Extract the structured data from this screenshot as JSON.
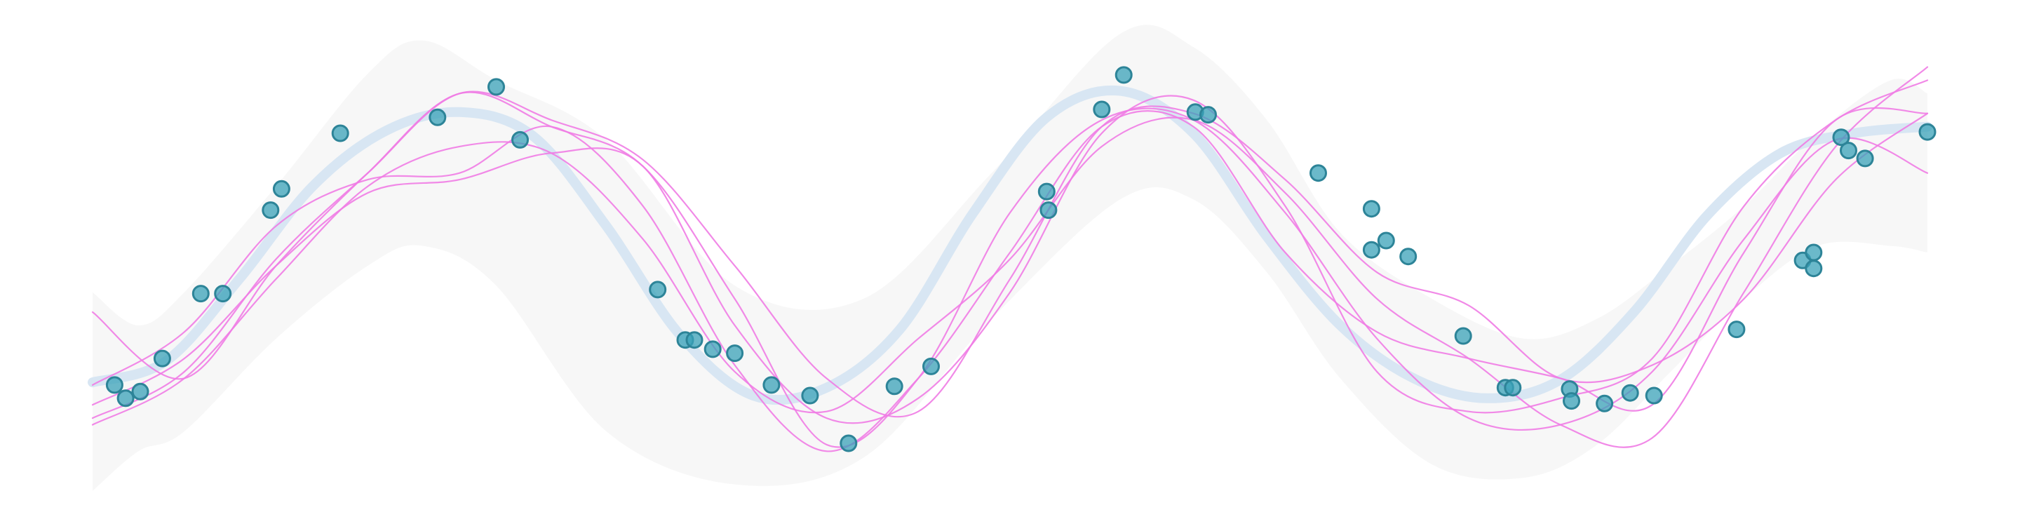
{
  "chart_data": {
    "type": "line",
    "title": "",
    "xlabel": "",
    "ylabel": "",
    "xlim": [
      0,
      10
    ],
    "ylim": [
      -1.8,
      1.8
    ],
    "grid": false,
    "legend": "none",
    "colors": {
      "band": "#f7f7f7",
      "mean": "#d8e6f3",
      "samples": "#f07ce4",
      "points_fill": "#3aa2b8",
      "points_stroke": "#2d8498"
    },
    "uncertainty_band": {
      "x": [
        0,
        0.25,
        0.5,
        1,
        1.5,
        1.8,
        2.2,
        2.8,
        3.5,
        4.2,
        4.9,
        5.6,
        6.0,
        6.4,
        6.8,
        7.3,
        7.8,
        8.2,
        8.6,
        9.0,
        9.4,
        9.8,
        10
      ],
      "upper": [
        -0.3,
        -0.55,
        -0.3,
        0.5,
        1.35,
        1.6,
        1.3,
        0.85,
        -0.25,
        -0.35,
        0.6,
        1.65,
        1.55,
        1.0,
        0.15,
        -0.35,
        -0.65,
        -0.5,
        -0.1,
        0.35,
        0.9,
        1.3,
        1.2
      ],
      "lower": [
        -1.8,
        -1.5,
        -1.35,
        -0.65,
        -0.1,
        0.05,
        -0.25,
        -1.35,
        -1.75,
        -1.55,
        -0.5,
        0.4,
        0.4,
        -0.15,
        -0.95,
        -1.6,
        -1.7,
        -1.45,
        -0.9,
        -0.35,
        0.05,
        0.05,
        0.0
      ]
    },
    "mean": {
      "x": [
        0,
        0.4,
        0.8,
        1.2,
        1.6,
        2.0,
        2.4,
        2.8,
        3.2,
        3.6,
        4.0,
        4.4,
        4.8,
        5.2,
        5.6,
        6.0,
        6.4,
        6.8,
        7.2,
        7.6,
        8.0,
        8.4,
        8.8,
        9.2,
        9.6,
        10
      ],
      "y": [
        -0.98,
        -0.82,
        -0.2,
        0.5,
        0.92,
        1.06,
        0.88,
        0.2,
        -0.62,
        -1.08,
        -1.02,
        -0.58,
        0.3,
        1.02,
        1.22,
        0.9,
        0.12,
        -0.55,
        -0.95,
        -1.1,
        -0.96,
        -0.45,
        0.28,
        0.75,
        0.9,
        0.95
      ]
    },
    "samples": [
      {
        "x": [
          0,
          0.5,
          1,
          1.5,
          2,
          2.5,
          3,
          3.5,
          4,
          4.5,
          5,
          5.5,
          6,
          6.5,
          7,
          7.5,
          8,
          8.5,
          9,
          9.5,
          10
        ],
        "y": [
          -1.15,
          -0.8,
          -0.1,
          0.45,
          0.55,
          0.75,
          0.65,
          -0.55,
          -1.25,
          -1.1,
          -0.3,
          0.9,
          1.15,
          0.35,
          -0.9,
          -1.2,
          -1.1,
          -0.8,
          0.35,
          1.0,
          1.3
        ]
      },
      {
        "x": [
          0,
          0.5,
          1,
          1.5,
          2,
          2.5,
          3,
          3.5,
          4,
          4.5,
          5,
          5.5,
          6,
          6.5,
          7,
          7.5,
          8,
          8.5,
          9,
          9.5,
          10
        ],
        "y": [
          -1.0,
          -0.6,
          0.2,
          0.55,
          0.6,
          0.95,
          0.35,
          -0.85,
          -1.5,
          -0.95,
          0.0,
          0.95,
          0.95,
          0.0,
          -0.6,
          -0.8,
          -0.95,
          -1.15,
          0.0,
          1.0,
          1.05
        ]
      },
      {
        "x": [
          0,
          0.5,
          1,
          1.5,
          2,
          2.5,
          3,
          3.5,
          4,
          4.5,
          5,
          5.5,
          6,
          6.5,
          7,
          7.5,
          8,
          8.5,
          9,
          9.5,
          10
        ],
        "y": [
          -0.45,
          -0.95,
          -0.1,
          0.6,
          1.2,
          0.95,
          0.65,
          -0.35,
          -1.45,
          -0.95,
          0.3,
          1.0,
          1.0,
          0.3,
          -0.65,
          -1.25,
          -1.3,
          -0.9,
          0.1,
          0.85,
          0.6
        ]
      },
      {
        "x": [
          0,
          0.5,
          1,
          1.5,
          2,
          2.5,
          3,
          3.5,
          4,
          4.5,
          5,
          5.5,
          6,
          6.5,
          7,
          7.5,
          8,
          8.5,
          9,
          9.5,
          10
        ],
        "y": [
          -1.3,
          -0.95,
          -0.2,
          0.5,
          0.8,
          0.75,
          0.1,
          -0.9,
          -1.2,
          -0.65,
          -0.05,
          0.8,
          1.0,
          0.45,
          -0.35,
          -0.8,
          -1.3,
          -1.4,
          -0.3,
          0.8,
          1.4
        ]
      },
      {
        "x": [
          0,
          0.5,
          1,
          1.5,
          2,
          2.5,
          3,
          3.5,
          4,
          4.5,
          5,
          5.5,
          6,
          6.5,
          7,
          7.5,
          8,
          8.5,
          9,
          9.5,
          10
        ],
        "y": [
          -1.25,
          -0.9,
          -0.05,
          0.6,
          1.2,
          1.0,
          0.7,
          -0.1,
          -0.95,
          -1.2,
          -0.2,
          0.95,
          1.05,
          0.55,
          -0.15,
          -0.4,
          -0.95,
          -0.85,
          -0.35,
          0.55,
          1.05
        ]
      }
    ],
    "points": {
      "x": [
        0.12,
        0.18,
        0.26,
        0.38,
        0.59,
        0.71,
        0.97,
        1.03,
        1.35,
        1.88,
        2.2,
        2.33,
        3.08,
        3.23,
        3.28,
        3.38,
        3.5,
        3.7,
        3.91,
        4.12,
        4.37,
        4.57,
        5.2,
        5.21,
        5.5,
        5.62,
        6.01,
        6.08,
        6.68,
        6.97,
        6.97,
        7.05,
        7.17,
        7.47,
        7.7,
        7.74,
        8.05,
        8.06,
        8.24,
        8.38,
        8.51,
        8.96,
        9.32,
        9.38,
        9.38,
        9.53,
        9.57,
        9.66,
        10.0
      ],
      "y": [
        -1.0,
        -1.1,
        -1.05,
        -0.8,
        -0.31,
        -0.31,
        0.32,
        0.48,
        0.9,
        1.02,
        1.25,
        0.85,
        -0.28,
        -0.66,
        -0.66,
        -0.73,
        -0.76,
        -1.0,
        -1.08,
        -1.44,
        -1.01,
        -0.86,
        0.46,
        0.32,
        1.08,
        1.34,
        1.06,
        1.04,
        0.6,
        0.33,
        0.02,
        0.09,
        -0.03,
        -0.63,
        -1.02,
        -1.02,
        -1.03,
        -1.12,
        -1.14,
        -1.06,
        -1.08,
        -0.58,
        -0.06,
        0.0,
        -0.12,
        0.87,
        0.77,
        0.71,
        0.91
      ]
    }
  }
}
